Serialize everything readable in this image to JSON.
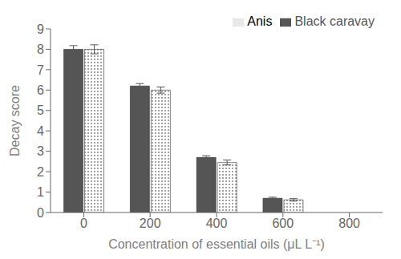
{
  "chart_data": {
    "type": "bar",
    "categories": [
      "0",
      "200",
      "400",
      "600",
      "800"
    ],
    "series": [
      {
        "name": "Black caravay",
        "color": "#555555",
        "values": [
          8.0,
          6.2,
          2.7,
          0.7,
          null
        ],
        "errors": [
          0.18,
          0.12,
          0.08,
          0.05,
          null
        ]
      },
      {
        "name": "Anis",
        "color": "#ffffff",
        "values": [
          8.0,
          6.0,
          2.45,
          0.62,
          null
        ],
        "errors": [
          0.22,
          0.15,
          0.12,
          0.06,
          null
        ]
      }
    ],
    "xlabel": "Concentration of essential oils (μL L⁻¹)",
    "ylabel": "Decay score",
    "ylim": [
      0,
      9
    ],
    "yticks": [
      0,
      1,
      2,
      3,
      4,
      5,
      6,
      7,
      8,
      9
    ],
    "grid": false,
    "legend": "top-right"
  }
}
